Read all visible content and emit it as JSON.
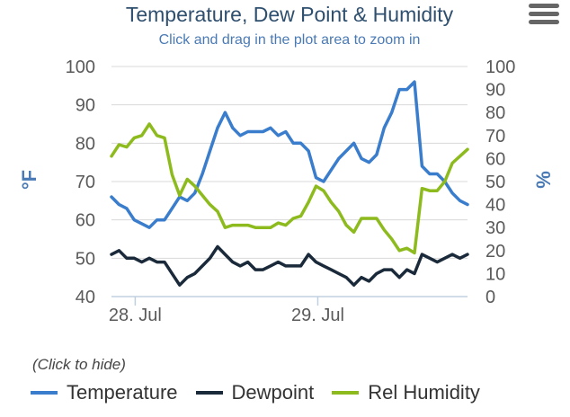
{
  "chart_data": {
    "type": "line",
    "title": "Temperature, Dew Point & Humidity",
    "subtitle": "Click and drag in the plot area to zoom in",
    "y_left": {
      "label": "°F",
      "range": [
        40,
        100
      ],
      "ticks": [
        "40",
        "50",
        "60",
        "70",
        "80",
        "90",
        "100"
      ]
    },
    "y_right": {
      "label": "%",
      "range": [
        0,
        100
      ],
      "ticks": [
        "0",
        "10",
        "20",
        "30",
        "40",
        "50",
        "60",
        "70",
        "80",
        "90",
        "100"
      ]
    },
    "x": {
      "ticks": [
        "28. Jul",
        "29. Jul"
      ],
      "tick_positions": [
        2.6,
        22.6
      ],
      "range": [
        0,
        39
      ]
    },
    "grid": true,
    "legend_position": "bottom",
    "series": [
      {
        "name": "Temperature",
        "axis": "left",
        "color": "#3a7dcc",
        "values": [
          66,
          64,
          63,
          60,
          59,
          58,
          60,
          60,
          63,
          66,
          65,
          67,
          72,
          78,
          84,
          88,
          84,
          82,
          83,
          83,
          83,
          84,
          82,
          83,
          80,
          80,
          78,
          71,
          70,
          73,
          76,
          78,
          80,
          76,
          75,
          77,
          84,
          88,
          94,
          94,
          96,
          74,
          72,
          72,
          70,
          67,
          65,
          64
        ]
      },
      {
        "name": "Dewpoint",
        "axis": "left",
        "color": "#1a2a3a",
        "values": [
          51,
          52,
          50,
          50,
          49,
          50,
          49,
          49,
          46,
          43,
          45,
          46,
          48,
          50,
          53,
          51,
          49,
          48,
          49,
          47,
          47,
          48,
          49,
          48,
          48,
          48,
          51,
          49,
          48,
          47,
          46,
          45,
          43,
          45,
          44,
          46,
          47,
          47,
          45,
          47,
          46,
          51,
          50,
          49,
          50,
          51,
          50,
          51
        ]
      },
      {
        "name": "Rel Humidity",
        "axis": "right",
        "color": "#8dbb1e",
        "values": [
          61,
          66,
          65,
          69,
          70,
          75,
          70,
          69,
          53,
          44,
          51,
          48,
          44,
          40,
          37,
          30,
          31,
          31,
          31,
          30,
          30,
          30,
          32,
          31,
          34,
          35,
          41,
          48,
          46,
          41,
          37,
          31,
          28,
          34,
          34,
          34,
          29,
          25,
          20,
          21,
          19,
          47,
          46,
          46,
          50,
          58,
          61,
          64
        ]
      }
    ]
  },
  "legend": {
    "hint": "(Click to hide)"
  },
  "colors": {
    "grid": "#d8d8d8",
    "axis": "#c0d0e0"
  }
}
